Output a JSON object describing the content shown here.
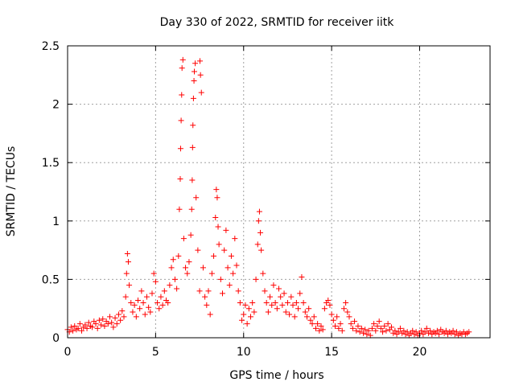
{
  "chart_data": {
    "type": "scatter",
    "title": "Day 330 of 2022, SRMTID for receiver iitk",
    "xlabel": "GPS time / hours",
    "ylabel": "SRMTID / TECUs",
    "xlim": [
      0,
      24
    ],
    "ylim": [
      0,
      2.5
    ],
    "xticks": [
      0,
      5,
      10,
      15,
      20
    ],
    "xtick_labels": [
      "0",
      "5",
      "10",
      "15",
      "20"
    ],
    "yticks": [
      0,
      0.5,
      1,
      1.5,
      2,
      2.5
    ],
    "ytick_labels": [
      "0",
      "0.5",
      "1",
      "1.5",
      "2",
      "2.5"
    ],
    "grid": true,
    "marker": "+",
    "color": "#ff0000",
    "series": [
      {
        "name": "SRMTID",
        "points": [
          [
            0.0,
            0.07
          ],
          [
            0.1,
            0.05
          ],
          [
            0.2,
            0.09
          ],
          [
            0.3,
            0.06
          ],
          [
            0.4,
            0.1
          ],
          [
            0.5,
            0.07
          ],
          [
            0.6,
            0.08
          ],
          [
            0.7,
            0.12
          ],
          [
            0.8,
            0.06
          ],
          [
            0.9,
            0.09
          ],
          [
            1.0,
            0.11
          ],
          [
            1.1,
            0.08
          ],
          [
            1.2,
            0.13
          ],
          [
            1.3,
            0.1
          ],
          [
            1.4,
            0.09
          ],
          [
            1.5,
            0.14
          ],
          [
            1.6,
            0.12
          ],
          [
            1.7,
            0.08
          ],
          [
            1.8,
            0.15
          ],
          [
            1.9,
            0.11
          ],
          [
            2.0,
            0.16
          ],
          [
            2.1,
            0.1
          ],
          [
            2.2,
            0.14
          ],
          [
            2.3,
            0.12
          ],
          [
            2.4,
            0.18
          ],
          [
            2.5,
            0.13
          ],
          [
            2.6,
            0.09
          ],
          [
            2.7,
            0.17
          ],
          [
            2.8,
            0.12
          ],
          [
            2.9,
            0.2
          ],
          [
            3.0,
            0.15
          ],
          [
            3.1,
            0.23
          ],
          [
            3.2,
            0.18
          ],
          [
            3.3,
            0.35
          ],
          [
            3.35,
            0.55
          ],
          [
            3.4,
            0.72
          ],
          [
            3.45,
            0.65
          ],
          [
            3.5,
            0.45
          ],
          [
            3.6,
            0.3
          ],
          [
            3.7,
            0.22
          ],
          [
            3.8,
            0.28
          ],
          [
            3.9,
            0.18
          ],
          [
            4.0,
            0.32
          ],
          [
            4.1,
            0.25
          ],
          [
            4.2,
            0.4
          ],
          [
            4.3,
            0.3
          ],
          [
            4.4,
            0.2
          ],
          [
            4.5,
            0.35
          ],
          [
            4.6,
            0.26
          ],
          [
            4.7,
            0.22
          ],
          [
            4.8,
            0.38
          ],
          [
            4.9,
            0.55
          ],
          [
            5.0,
            0.48
          ],
          [
            5.1,
            0.3
          ],
          [
            5.2,
            0.25
          ],
          [
            5.3,
            0.35
          ],
          [
            5.4,
            0.28
          ],
          [
            5.5,
            0.4
          ],
          [
            5.6,
            0.32
          ],
          [
            5.7,
            0.3
          ],
          [
            5.8,
            0.45
          ],
          [
            5.9,
            0.6
          ],
          [
            6.0,
            0.67
          ],
          [
            6.1,
            0.5
          ],
          [
            6.2,
            0.42
          ],
          [
            6.3,
            0.7
          ],
          [
            6.35,
            1.1
          ],
          [
            6.4,
            1.36
          ],
          [
            6.42,
            1.62
          ],
          [
            6.45,
            1.86
          ],
          [
            6.48,
            2.08
          ],
          [
            6.5,
            2.31
          ],
          [
            6.55,
            2.38
          ],
          [
            6.6,
            0.85
          ],
          [
            6.7,
            0.6
          ],
          [
            6.8,
            0.55
          ],
          [
            6.9,
            0.65
          ],
          [
            7.0,
            0.88
          ],
          [
            7.05,
            1.1
          ],
          [
            7.08,
            1.35
          ],
          [
            7.1,
            1.63
          ],
          [
            7.12,
            1.82
          ],
          [
            7.15,
            2.05
          ],
          [
            7.18,
            2.2
          ],
          [
            7.2,
            2.28
          ],
          [
            7.25,
            2.35
          ],
          [
            7.3,
            1.2
          ],
          [
            7.4,
            0.75
          ],
          [
            7.5,
            0.4
          ],
          [
            7.52,
            2.37
          ],
          [
            7.55,
            2.25
          ],
          [
            7.6,
            2.1
          ],
          [
            7.7,
            0.6
          ],
          [
            7.8,
            0.35
          ],
          [
            7.9,
            0.28
          ],
          [
            8.0,
            0.4
          ],
          [
            8.1,
            0.2
          ],
          [
            8.2,
            0.55
          ],
          [
            8.3,
            0.7
          ],
          [
            8.4,
            1.03
          ],
          [
            8.45,
            1.27
          ],
          [
            8.5,
            1.2
          ],
          [
            8.55,
            0.95
          ],
          [
            8.6,
            0.8
          ],
          [
            8.7,
            0.5
          ],
          [
            8.8,
            0.38
          ],
          [
            8.9,
            0.75
          ],
          [
            9.0,
            0.92
          ],
          [
            9.1,
            0.6
          ],
          [
            9.2,
            0.45
          ],
          [
            9.3,
            0.7
          ],
          [
            9.4,
            0.55
          ],
          [
            9.5,
            0.85
          ],
          [
            9.6,
            0.62
          ],
          [
            9.7,
            0.4
          ],
          [
            9.8,
            0.3
          ],
          [
            9.9,
            0.15
          ],
          [
            10.0,
            0.2
          ],
          [
            10.1,
            0.28
          ],
          [
            10.2,
            0.12
          ],
          [
            10.3,
            0.25
          ],
          [
            10.4,
            0.18
          ],
          [
            10.5,
            0.3
          ],
          [
            10.6,
            0.22
          ],
          [
            10.7,
            0.5
          ],
          [
            10.8,
            0.8
          ],
          [
            10.85,
            1.0
          ],
          [
            10.9,
            1.08
          ],
          [
            10.95,
            0.9
          ],
          [
            11.0,
            0.75
          ],
          [
            11.1,
            0.55
          ],
          [
            11.2,
            0.4
          ],
          [
            11.3,
            0.3
          ],
          [
            11.4,
            0.22
          ],
          [
            11.5,
            0.35
          ],
          [
            11.6,
            0.28
          ],
          [
            11.7,
            0.45
          ],
          [
            11.8,
            0.3
          ],
          [
            11.9,
            0.25
          ],
          [
            12.0,
            0.42
          ],
          [
            12.1,
            0.35
          ],
          [
            12.2,
            0.28
          ],
          [
            12.3,
            0.38
          ],
          [
            12.4,
            0.22
          ],
          [
            12.5,
            0.3
          ],
          [
            12.6,
            0.2
          ],
          [
            12.7,
            0.35
          ],
          [
            12.8,
            0.28
          ],
          [
            12.9,
            0.18
          ],
          [
            13.0,
            0.3
          ],
          [
            13.1,
            0.25
          ],
          [
            13.2,
            0.38
          ],
          [
            13.3,
            0.52
          ],
          [
            13.4,
            0.3
          ],
          [
            13.5,
            0.22
          ],
          [
            13.6,
            0.18
          ],
          [
            13.7,
            0.25
          ],
          [
            13.8,
            0.15
          ],
          [
            13.9,
            0.12
          ],
          [
            14.0,
            0.18
          ],
          [
            14.1,
            0.08
          ],
          [
            14.2,
            0.12
          ],
          [
            14.3,
            0.06
          ],
          [
            14.4,
            0.1
          ],
          [
            14.5,
            0.07
          ],
          [
            14.6,
            0.25
          ],
          [
            14.7,
            0.3
          ],
          [
            14.8,
            0.32
          ],
          [
            14.9,
            0.28
          ],
          [
            15.0,
            0.2
          ],
          [
            15.1,
            0.15
          ],
          [
            15.2,
            0.1
          ],
          [
            15.3,
            0.18
          ],
          [
            15.4,
            0.08
          ],
          [
            15.5,
            0.12
          ],
          [
            15.6,
            0.06
          ],
          [
            15.7,
            0.25
          ],
          [
            15.8,
            0.3
          ],
          [
            15.9,
            0.22
          ],
          [
            16.0,
            0.18
          ],
          [
            16.1,
            0.12
          ],
          [
            16.2,
            0.08
          ],
          [
            16.3,
            0.14
          ],
          [
            16.4,
            0.06
          ],
          [
            16.5,
            0.1
          ],
          [
            16.6,
            0.05
          ],
          [
            16.7,
            0.08
          ],
          [
            16.8,
            0.04
          ],
          [
            16.9,
            0.07
          ],
          [
            17.0,
            0.03
          ],
          [
            17.1,
            0.06
          ],
          [
            17.2,
            0.02
          ],
          [
            17.3,
            0.08
          ],
          [
            17.4,
            0.12
          ],
          [
            17.5,
            0.06
          ],
          [
            17.6,
            0.1
          ],
          [
            17.7,
            0.14
          ],
          [
            17.8,
            0.08
          ],
          [
            17.9,
            0.05
          ],
          [
            18.0,
            0.1
          ],
          [
            18.1,
            0.06
          ],
          [
            18.2,
            0.12
          ],
          [
            18.3,
            0.07
          ],
          [
            18.4,
            0.09
          ],
          [
            18.5,
            0.04
          ],
          [
            18.6,
            0.06
          ],
          [
            18.7,
            0.03
          ],
          [
            18.8,
            0.05
          ],
          [
            18.9,
            0.08
          ],
          [
            19.0,
            0.04
          ],
          [
            19.1,
            0.06
          ],
          [
            19.2,
            0.03
          ],
          [
            19.3,
            0.05
          ],
          [
            19.4,
            0.02
          ],
          [
            19.5,
            0.04
          ],
          [
            19.6,
            0.06
          ],
          [
            19.7,
            0.03
          ],
          [
            19.8,
            0.05
          ],
          [
            19.9,
            0.02
          ],
          [
            20.0,
            0.04
          ],
          [
            20.1,
            0.06
          ],
          [
            20.2,
            0.03
          ],
          [
            20.3,
            0.05
          ],
          [
            20.4,
            0.08
          ],
          [
            20.5,
            0.04
          ],
          [
            20.6,
            0.06
          ],
          [
            20.7,
            0.03
          ],
          [
            20.8,
            0.05
          ],
          [
            20.9,
            0.04
          ],
          [
            21.0,
            0.06
          ],
          [
            21.1,
            0.03
          ],
          [
            21.2,
            0.07
          ],
          [
            21.3,
            0.05
          ],
          [
            21.4,
            0.04
          ],
          [
            21.5,
            0.06
          ],
          [
            21.6,
            0.03
          ],
          [
            21.7,
            0.05
          ],
          [
            21.8,
            0.04
          ],
          [
            21.9,
            0.06
          ],
          [
            22.0,
            0.03
          ],
          [
            22.1,
            0.05
          ],
          [
            22.2,
            0.02
          ],
          [
            22.3,
            0.04
          ],
          [
            22.4,
            0.03
          ],
          [
            22.5,
            0.05
          ],
          [
            22.6,
            0.03
          ],
          [
            22.7,
            0.04
          ],
          [
            22.8,
            0.05
          ]
        ]
      }
    ]
  }
}
